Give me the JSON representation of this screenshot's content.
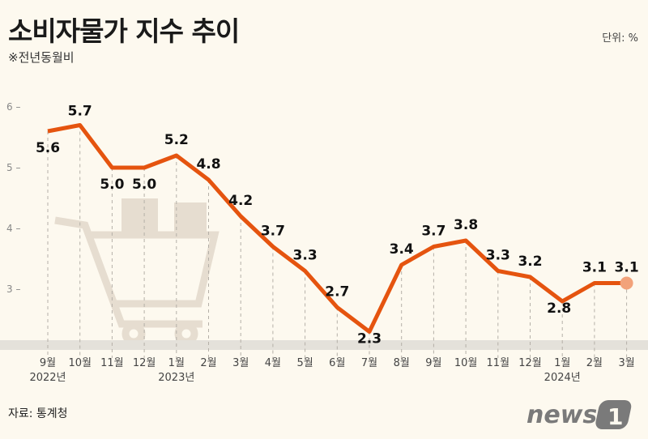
{
  "header": {
    "title": "소비자물가 지수 추이",
    "subtitle": "※전년동월비",
    "unit": "단위: %"
  },
  "footer": {
    "source": "자료: 통계청",
    "logo_text": "news1"
  },
  "colors": {
    "line": "#e5540f",
    "background": "#fdf9ef",
    "last_point": "#f2a27a"
  },
  "chart_data": {
    "type": "line",
    "title": "소비자물가 지수 추이",
    "ylabel": "",
    "xlabel": "",
    "ylim": [
      2,
      6
    ],
    "yticks": [
      "3",
      "4",
      "5",
      "6"
    ],
    "categories": [
      "9월",
      "10월",
      "11월",
      "12월",
      "1월",
      "2월",
      "3월",
      "4월",
      "5월",
      "6월",
      "7월",
      "8월",
      "9월",
      "10월",
      "11월",
      "12월",
      "1월",
      "2월",
      "3월"
    ],
    "year_labels": [
      {
        "index": 0,
        "label": "2022년"
      },
      {
        "index": 4,
        "label": "2023년"
      },
      {
        "index": 16,
        "label": "2024년"
      }
    ],
    "values": [
      5.6,
      5.7,
      5.0,
      5.0,
      5.2,
      4.8,
      4.2,
      3.7,
      3.3,
      2.7,
      2.3,
      3.4,
      3.7,
      3.8,
      3.3,
      3.2,
      2.8,
      3.1,
      3.1
    ],
    "value_labels": [
      "5.6",
      "5.7",
      "5.0",
      "5.0",
      "5.2",
      "4.8",
      "4.2",
      "3.7",
      "3.3",
      "2.7",
      "2.3",
      "3.4",
      "3.7",
      "3.8",
      "3.3",
      "3.2",
      "2.8",
      "3.1",
      "3.1"
    ],
    "grid": false
  }
}
